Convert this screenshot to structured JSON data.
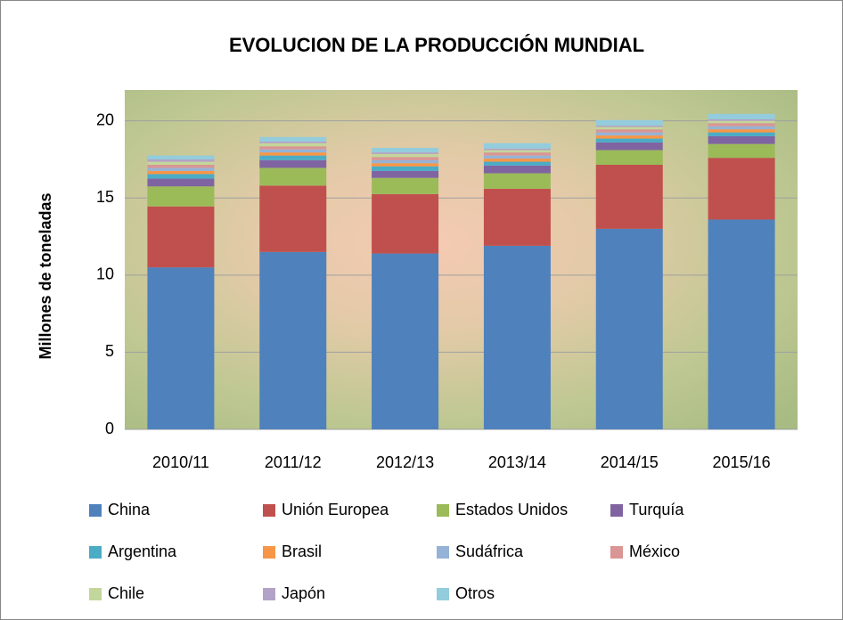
{
  "chart_data": {
    "type": "bar",
    "stacked": true,
    "title": "EVOLUCION DE LA PRODUCCIÓN MUNDIAL",
    "y_label": "Millones de toneladas",
    "categories": [
      "2010/11",
      "2011/12",
      "2012/13",
      "2013/14",
      "2014/15",
      "2015/16"
    ],
    "series": [
      {
        "name": "China",
        "color": "#4f81bd",
        "values": [
          10.5,
          11.5,
          11.4,
          11.9,
          13.0,
          13.6
        ]
      },
      {
        "name": "Unión Europea",
        "color": "#c0504d",
        "values": [
          3.95,
          4.3,
          3.85,
          3.7,
          4.15,
          4.0
        ]
      },
      {
        "name": "Estados Unidos",
        "color": "#9bbb59",
        "values": [
          1.3,
          1.15,
          1.05,
          1.0,
          0.95,
          0.9
        ]
      },
      {
        "name": "Turquía",
        "color": "#8064a2",
        "values": [
          0.5,
          0.5,
          0.45,
          0.5,
          0.5,
          0.5
        ]
      },
      {
        "name": "Argentina",
        "color": "#4bacc6",
        "values": [
          0.3,
          0.3,
          0.3,
          0.25,
          0.25,
          0.25
        ]
      },
      {
        "name": "Brasil",
        "color": "#f79646",
        "values": [
          0.2,
          0.2,
          0.2,
          0.2,
          0.2,
          0.2
        ]
      },
      {
        "name": "Sudáfrica",
        "color": "#95b3d7",
        "values": [
          0.2,
          0.2,
          0.2,
          0.2,
          0.2,
          0.2
        ]
      },
      {
        "name": "México",
        "color": "#d99694",
        "values": [
          0.2,
          0.2,
          0.2,
          0.2,
          0.2,
          0.2
        ]
      },
      {
        "name": "Chile",
        "color": "#c3d69b",
        "values": [
          0.2,
          0.2,
          0.2,
          0.15,
          0.15,
          0.15
        ]
      },
      {
        "name": "Japón",
        "color": "#b3a2c7",
        "values": [
          0.15,
          0.1,
          0.1,
          0.1,
          0.1,
          0.1
        ]
      },
      {
        "name": "Otros",
        "color": "#93cddd",
        "values": [
          0.25,
          0.3,
          0.3,
          0.35,
          0.35,
          0.35
        ]
      }
    ],
    "ylim": [
      0,
      22
    ],
    "yticks": [
      0,
      5,
      10,
      15,
      20
    ],
    "grid": true,
    "legend": "bottom"
  }
}
